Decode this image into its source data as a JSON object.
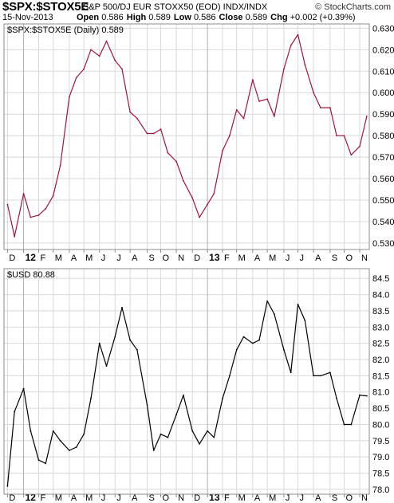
{
  "header": {
    "symbol": "$SPX:$STOX5E",
    "description": "S&P 500/DJ EUR STOXX50 (EOD)  INDX/INDX",
    "brand": "© StockCharts.com",
    "date": "15-Nov-2013",
    "open_label": "Open",
    "open_value": "0.586",
    "high_label": "High",
    "high_value": "0.589",
    "low_label": "Low",
    "low_value": "0.586",
    "close_label": "Close",
    "close_value": "0.589",
    "chg_label": "Chg",
    "chg_value": "+0.002 (+0.39%)"
  },
  "colors": {
    "ratio_line": "#a0143c",
    "usd_line": "#000000",
    "grid": "#d8d8d8",
    "frame": "#8c8c8c",
    "year_divider": "#b0b0b0"
  },
  "chart_data": [
    {
      "type": "line",
      "legend": "$SPX:$STOX5E (Daily) 0.589",
      "x_tick_labels": [
        "D",
        "12",
        "F",
        "M",
        "A",
        "M",
        "J",
        "J",
        "A",
        "S",
        "O",
        "N",
        "D",
        "13",
        "F",
        "M",
        "A",
        "M",
        "J",
        "J",
        "A",
        "S",
        "O",
        "N"
      ],
      "ylim": [
        0.527,
        0.632
      ],
      "y_ticks": [
        "0.530",
        "0.540",
        "0.550",
        "0.560",
        "0.570",
        "0.580",
        "0.590",
        "0.600",
        "0.610",
        "0.620",
        "0.630"
      ],
      "grid": true,
      "series": [
        {
          "x": [
            "2011-12-01",
            "2011-12-15",
            "2012-01-02",
            "2012-01-16",
            "2012-02-01",
            "2012-02-15",
            "2012-03-01",
            "2012-03-15",
            "2012-04-02",
            "2012-04-16",
            "2012-05-01",
            "2012-05-15",
            "2012-06-01",
            "2012-06-15",
            "2012-07-02",
            "2012-07-16",
            "2012-08-01",
            "2012-08-15",
            "2012-09-04",
            "2012-09-17",
            "2012-10-01",
            "2012-10-15",
            "2012-11-01",
            "2012-11-15",
            "2012-12-03",
            "2012-12-17",
            "2013-01-02",
            "2013-01-15",
            "2013-02-01",
            "2013-02-15",
            "2013-03-01",
            "2013-03-15",
            "2013-04-02",
            "2013-04-15",
            "2013-05-01",
            "2013-05-15",
            "2013-06-03",
            "2013-06-17",
            "2013-07-01",
            "2013-07-15",
            "2013-08-01",
            "2013-08-15",
            "2013-09-03",
            "2013-09-16",
            "2013-10-01",
            "2013-10-15",
            "2013-11-01",
            "2013-11-15"
          ],
          "values": [
            0.548,
            0.533,
            0.553,
            0.542,
            0.543,
            0.546,
            0.552,
            0.566,
            0.598,
            0.607,
            0.611,
            0.62,
            0.617,
            0.624,
            0.615,
            0.611,
            0.591,
            0.588,
            0.581,
            0.581,
            0.583,
            0.572,
            0.568,
            0.559,
            0.551,
            0.542,
            0.548,
            0.553,
            0.573,
            0.58,
            0.592,
            0.588,
            0.606,
            0.596,
            0.597,
            0.589,
            0.611,
            0.622,
            0.627,
            0.613,
            0.6,
            0.593,
            0.593,
            0.58,
            0.58,
            0.571,
            0.575,
            0.589
          ]
        }
      ]
    },
    {
      "type": "line",
      "legend": "$USD  80.88",
      "x_tick_labels": [
        "D",
        "12",
        "F",
        "M",
        "A",
        "M",
        "J",
        "J",
        "A",
        "S",
        "O",
        "N",
        "D",
        "13",
        "F",
        "M",
        "A",
        "M",
        "J",
        "J",
        "A",
        "S",
        "O",
        "N"
      ],
      "ylim": [
        77.85,
        84.8
      ],
      "y_ticks": [
        "78.0",
        "78.5",
        "79.0",
        "79.5",
        "80.0",
        "80.5",
        "81.0",
        "81.5",
        "82.0",
        "82.5",
        "83.0",
        "83.5",
        "84.0",
        "84.5"
      ],
      "grid": true,
      "series": [
        {
          "x": [
            "2011-12-01",
            "2011-12-15",
            "2012-01-02",
            "2012-01-16",
            "2012-02-01",
            "2012-02-15",
            "2012-03-01",
            "2012-03-15",
            "2012-04-02",
            "2012-04-16",
            "2012-05-01",
            "2012-05-15",
            "2012-06-01",
            "2012-06-15",
            "2012-07-02",
            "2012-07-16",
            "2012-08-01",
            "2012-08-15",
            "2012-09-04",
            "2012-09-17",
            "2012-10-01",
            "2012-10-15",
            "2012-11-01",
            "2012-11-15",
            "2012-12-03",
            "2012-12-17",
            "2013-01-02",
            "2013-01-15",
            "2013-02-01",
            "2013-02-15",
            "2013-03-01",
            "2013-03-15",
            "2013-04-02",
            "2013-04-15",
            "2013-05-01",
            "2013-05-15",
            "2013-06-03",
            "2013-06-17",
            "2013-07-01",
            "2013-07-15",
            "2013-08-01",
            "2013-08-15",
            "2013-09-03",
            "2013-09-16",
            "2013-10-01",
            "2013-10-15",
            "2013-11-01",
            "2013-11-15"
          ],
          "values": [
            78.1,
            80.4,
            81.1,
            79.8,
            78.9,
            78.8,
            79.8,
            79.5,
            79.2,
            79.3,
            79.7,
            80.8,
            82.5,
            81.8,
            82.7,
            83.6,
            82.6,
            82.3,
            80.6,
            79.2,
            79.7,
            79.6,
            80.3,
            80.9,
            79.8,
            79.4,
            79.8,
            79.6,
            80.8,
            81.5,
            82.3,
            82.7,
            82.5,
            82.6,
            83.8,
            83.4,
            82.3,
            81.6,
            83.7,
            83.2,
            81.5,
            81.5,
            81.6,
            80.8,
            80.0,
            80.0,
            80.9,
            80.88
          ]
        }
      ]
    }
  ]
}
